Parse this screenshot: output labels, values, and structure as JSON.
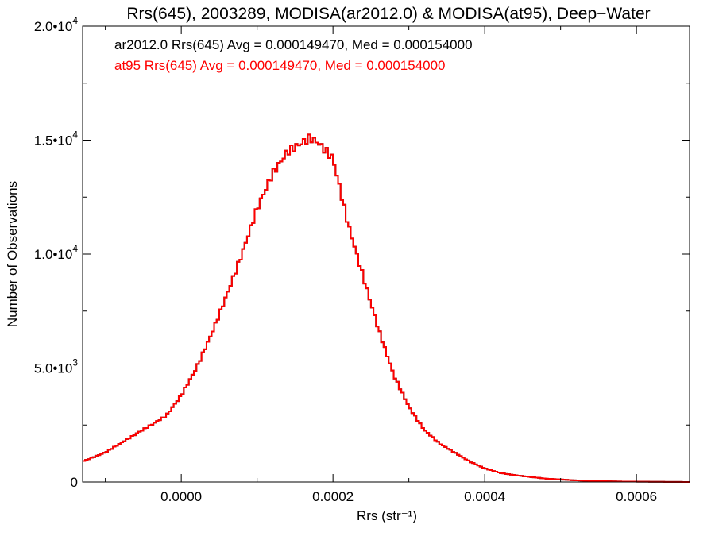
{
  "chart_data": {
    "type": "line",
    "title": "Rrs(645), 2003289, MODISA(ar2012.0) & MODISA(at95), Deep−Water",
    "xlabel": "Rrs (str⁻¹)",
    "ylabel": "Number of Observations",
    "xlim": [
      -0.00013,
      0.00067
    ],
    "ylim": [
      0,
      20000
    ],
    "x_ticks": [
      {
        "value": 0.0,
        "label": "0.0000"
      },
      {
        "value": 0.0002,
        "label": "0.0002"
      },
      {
        "value": 0.0004,
        "label": "0.0004"
      },
      {
        "value": 0.0006,
        "label": "0.0006"
      }
    ],
    "y_ticks": [
      {
        "value": 0,
        "mant": "0",
        "exp": ""
      },
      {
        "value": 5000,
        "mant": "5.0•10",
        "exp": "3"
      },
      {
        "value": 10000,
        "mant": "1.0•10",
        "exp": "4"
      },
      {
        "value": 15000,
        "mant": "1.5•10",
        "exp": "4"
      },
      {
        "value": 20000,
        "mant": "2.0•10",
        "exp": "4"
      }
    ],
    "annotations": [
      {
        "text": "ar2012.0 Rrs(645) Avg = 0.000149470, Med = 0.000154000",
        "color": "#000000"
      },
      {
        "text": "at95 Rrs(645) Avg = 0.000149470, Med = 0.000154000",
        "color": "#ff0000"
      }
    ],
    "series": [
      {
        "color": "#000000",
        "x": [
          -0.00013,
          -0.0001,
          -8e-05,
          -6e-05,
          -4e-05,
          -2e-05,
          0.0,
          2e-05,
          4e-05,
          6e-05,
          8e-05,
          0.0001,
          0.00012,
          0.00014,
          0.00016,
          0.00017,
          0.00018,
          0.0002,
          0.00022,
          0.00024,
          0.00026,
          0.00028,
          0.0003,
          0.00032,
          0.00034,
          0.00036,
          0.00038,
          0.0004,
          0.00042,
          0.00044,
          0.00046,
          0.00048,
          0.0005,
          0.00052,
          0.00055,
          0.00058,
          0.00062,
          0.00067
        ],
        "values": [
          900,
          1300,
          1700,
          2100,
          2500,
          2900,
          3800,
          5000,
          6500,
          8200,
          10000,
          12000,
          13500,
          14500,
          14900,
          15100,
          14900,
          14200,
          11300,
          9000,
          6700,
          4700,
          3300,
          2300,
          1700,
          1300,
          900,
          600,
          400,
          300,
          220,
          150,
          110,
          70,
          40,
          20,
          10,
          0
        ]
      },
      {
        "color": "#ff0000",
        "x": [
          -0.00013,
          -0.0001,
          -8e-05,
          -6e-05,
          -4e-05,
          -2e-05,
          0.0,
          2e-05,
          4e-05,
          6e-05,
          8e-05,
          0.0001,
          0.00012,
          0.00014,
          0.00016,
          0.00017,
          0.00018,
          0.0002,
          0.00022,
          0.00024,
          0.00026,
          0.00028,
          0.0003,
          0.00032,
          0.00034,
          0.00036,
          0.00038,
          0.0004,
          0.00042,
          0.00044,
          0.00046,
          0.00048,
          0.0005,
          0.00052,
          0.00055,
          0.00058,
          0.00062,
          0.00067
        ],
        "values": [
          900,
          1300,
          1700,
          2100,
          2500,
          2900,
          3800,
          5000,
          6500,
          8200,
          10000,
          12000,
          13500,
          14500,
          14900,
          15100,
          14900,
          14200,
          11300,
          9000,
          6700,
          4700,
          3300,
          2300,
          1700,
          1300,
          900,
          600,
          400,
          300,
          220,
          150,
          110,
          70,
          40,
          20,
          10,
          0
        ]
      }
    ],
    "grid": false,
    "legend": "none"
  }
}
